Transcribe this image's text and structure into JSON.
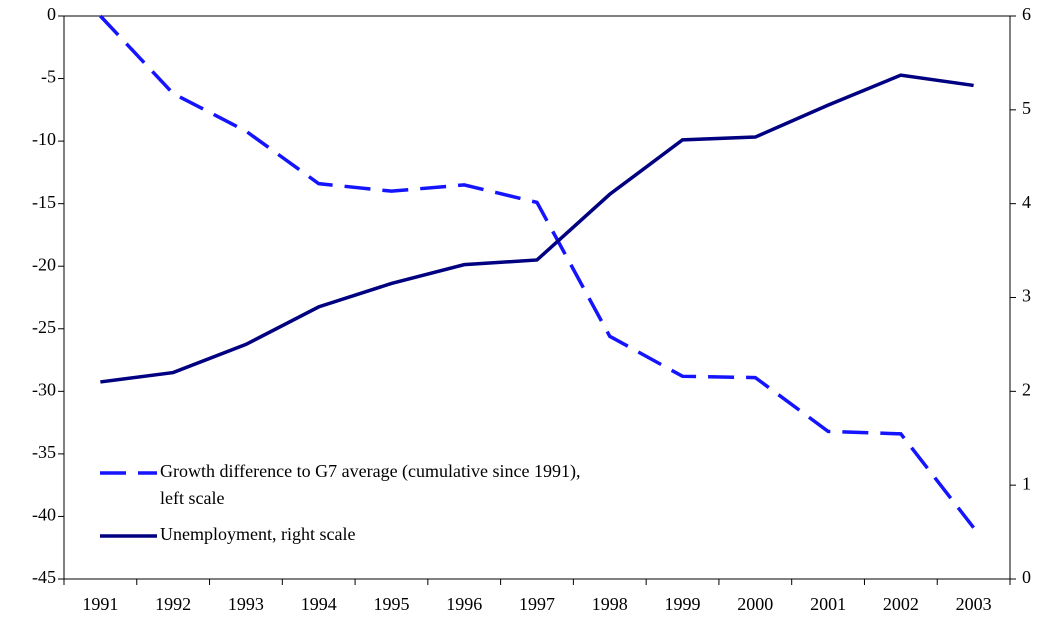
{
  "chart_data": {
    "type": "line",
    "categories": [
      "1991",
      "1992",
      "1993",
      "1994",
      "1995",
      "1996",
      "1997",
      "1998",
      "1999",
      "2000",
      "2001",
      "2002",
      "2003"
    ],
    "series": [
      {
        "name": "Growth difference to G7 average (cumulative since 1991), left scale",
        "color": "#1414ff",
        "dashed": true,
        "values": [
          0,
          -6.2,
          -9.2,
          -13.4,
          -14.0,
          -13.5,
          -14.9,
          -25.6,
          -28.8,
          -28.9,
          -33.2,
          -33.4,
          -40.9
        ]
      },
      {
        "name": "Unemployment, right scale",
        "color": "#000080",
        "axis": "y2",
        "values": [
          2.1,
          2.2,
          2.5,
          2.9,
          3.15,
          3.35,
          3.4,
          4.1,
          4.68,
          4.71,
          5.05,
          5.37,
          5.26
        ]
      }
    ],
    "ylim": [
      -45,
      0
    ],
    "yticks": [
      0,
      -5,
      -10,
      -15,
      -20,
      -25,
      -30,
      -35,
      -40,
      -45
    ],
    "y2lim": [
      0,
      6
    ],
    "y2ticks": [
      0,
      1,
      2,
      3,
      4,
      5,
      6
    ]
  }
}
